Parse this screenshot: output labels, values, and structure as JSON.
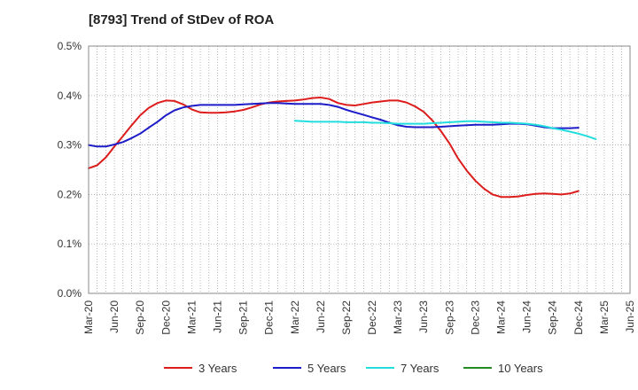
{
  "chart_data": {
    "type": "line",
    "title": "[8793]  Trend of StDev of ROA",
    "xlabel": "",
    "ylabel": "",
    "ylim": [
      0,
      0.5
    ],
    "y_ticks": [
      "0.0%",
      "0.1%",
      "0.2%",
      "0.3%",
      "0.4%",
      "0.5%"
    ],
    "x_ticks": [
      "Mar-20",
      "Jun-20",
      "Sep-20",
      "Dec-20",
      "Mar-21",
      "Jun-21",
      "Sep-21",
      "Dec-21",
      "Mar-22",
      "Jun-22",
      "Sep-22",
      "Dec-22",
      "Mar-23",
      "Jun-23",
      "Sep-23",
      "Dec-23",
      "Mar-24",
      "Jun-24",
      "Sep-24",
      "Dec-24",
      "Mar-25",
      "Jun-25"
    ],
    "grid": true,
    "legend_position": "bottom",
    "series": [
      {
        "name": "3 Years",
        "color": "#dd1c1c",
        "x": [
          0,
          0.33,
          0.67,
          1,
          1.33,
          1.67,
          2,
          2.33,
          2.67,
          3,
          3.33,
          3.67,
          4,
          4.33,
          4.67,
          5,
          5.33,
          5.67,
          6,
          6.33,
          6.67,
          7,
          7.33,
          7.67,
          8,
          8.33,
          8.67,
          9,
          9.33,
          9.67,
          10,
          10.33,
          10.67,
          11,
          11.33,
          11.67,
          12,
          12.33,
          12.67,
          13,
          13.33,
          13.67,
          14,
          14.33,
          14.67,
          15,
          15.33,
          15.67,
          16,
          16.33,
          16.67,
          17,
          17.33,
          17.67,
          18,
          18.33,
          18.67,
          19,
          19.33,
          19.67,
          20
        ],
        "values": [
          0.253,
          0.259,
          0.275,
          0.297,
          0.318,
          0.34,
          0.36,
          0.375,
          0.385,
          0.39,
          0.389,
          0.382,
          0.372,
          0.366,
          0.365,
          0.365,
          0.366,
          0.368,
          0.371,
          0.376,
          0.382,
          0.386,
          0.388,
          0.389,
          0.39,
          0.392,
          0.395,
          0.396,
          0.393,
          0.385,
          0.381,
          0.38,
          0.383,
          0.386,
          0.388,
          0.39,
          0.39,
          0.386,
          0.378,
          0.367,
          0.35,
          0.328,
          0.303,
          0.273,
          0.248,
          0.228,
          0.212,
          0.2,
          0.195,
          0.195,
          0.196,
          0.199,
          0.201,
          0.202,
          0.201,
          0.2,
          0.202,
          0.207,
          0.207,
          0.207,
          0.207
        ],
        "points_shown": 58
      },
      {
        "name": "5 Years",
        "color": "#1c1cc8",
        "x": [
          0,
          0.33,
          0.67,
          1,
          1.33,
          1.67,
          2,
          2.33,
          2.67,
          3,
          3.33,
          3.67,
          4,
          4.33,
          4.67,
          5,
          5.33,
          5.67,
          6,
          6.33,
          6.67,
          7,
          7.33,
          7.67,
          8,
          8.33,
          8.67,
          9,
          9.33,
          9.67,
          10,
          10.33,
          10.67,
          11,
          11.33,
          11.67,
          12,
          12.33,
          12.67,
          13,
          13.33,
          13.67,
          14,
          14.33,
          14.67,
          15,
          15.33,
          15.67,
          16,
          16.33,
          16.67,
          17,
          17.33,
          17.67,
          18,
          18.33,
          18.67,
          19,
          19.33,
          19.67,
          20
        ],
        "values": [
          0.3,
          0.297,
          0.297,
          0.301,
          0.306,
          0.314,
          0.323,
          0.335,
          0.347,
          0.36,
          0.37,
          0.376,
          0.379,
          0.381,
          0.381,
          0.381,
          0.381,
          0.381,
          0.382,
          0.383,
          0.384,
          0.385,
          0.385,
          0.384,
          0.383,
          0.383,
          0.383,
          0.383,
          0.381,
          0.377,
          0.371,
          0.366,
          0.361,
          0.356,
          0.351,
          0.345,
          0.34,
          0.337,
          0.336,
          0.336,
          0.336,
          0.337,
          0.338,
          0.339,
          0.34,
          0.341,
          0.341,
          0.341,
          0.342,
          0.343,
          0.343,
          0.342,
          0.339,
          0.336,
          0.334,
          0.334,
          0.334,
          0.335,
          0.336,
          0.336,
          0.336
        ],
        "points_shown": 58
      },
      {
        "name": "7 Years",
        "color": "#22dddd",
        "x": [
          8,
          8.33,
          8.67,
          9,
          9.33,
          9.67,
          10,
          10.33,
          10.67,
          11,
          11.33,
          11.67,
          12,
          12.33,
          12.67,
          13,
          13.33,
          13.67,
          14,
          14.33,
          14.67,
          15,
          15.33,
          15.67,
          16,
          16.33,
          16.67,
          17,
          17.33,
          17.67,
          18,
          18.33,
          18.67,
          19,
          19.33,
          19.67
        ],
        "values": [
          0.349,
          0.348,
          0.347,
          0.347,
          0.347,
          0.347,
          0.346,
          0.346,
          0.346,
          0.345,
          0.345,
          0.344,
          0.343,
          0.343,
          0.343,
          0.343,
          0.344,
          0.345,
          0.346,
          0.347,
          0.348,
          0.348,
          0.347,
          0.346,
          0.345,
          0.345,
          0.344,
          0.343,
          0.341,
          0.338,
          0.334,
          0.331,
          0.327,
          0.323,
          0.318,
          0.312
        ]
      },
      {
        "name": "10 Years",
        "color": "#228b22",
        "x": [],
        "values": []
      }
    ]
  }
}
